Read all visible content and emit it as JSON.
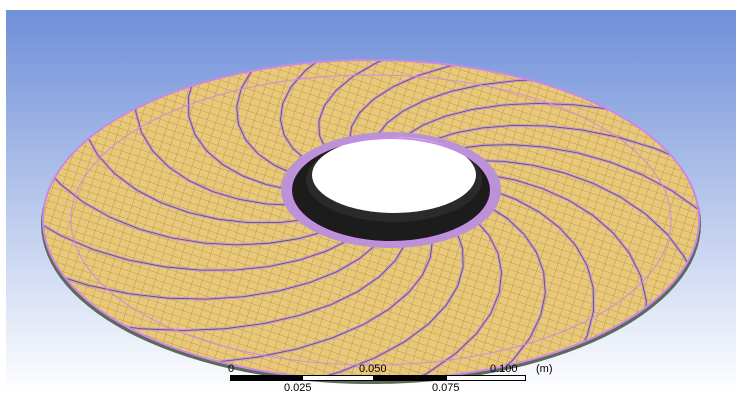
{
  "viewport": {
    "background_top": "#6f8fd8",
    "background_bottom": "#ffffff",
    "model": "impeller-disc-mesh",
    "mesh_fill": "#e8c97a",
    "mesh_lines": "#c79a4e",
    "edge_color": "#c98ae6",
    "hub_color": "#1c1c1c"
  },
  "scale_bar": {
    "top_labels": [
      "0",
      "0.050",
      "0.100"
    ],
    "bottom_labels": [
      "0.025",
      "0.075"
    ],
    "unit": "(m)"
  }
}
